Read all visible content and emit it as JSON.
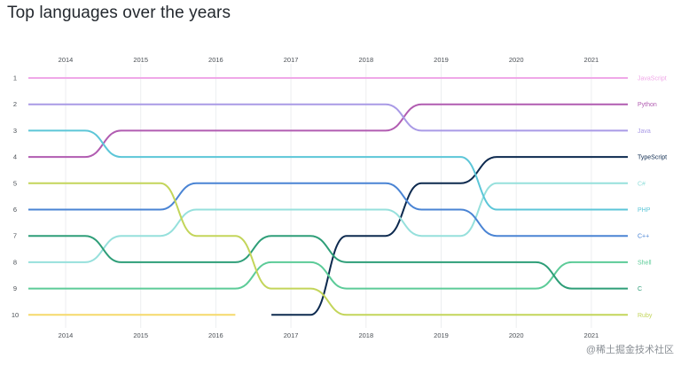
{
  "watermark": "@稀土掘金技术社区",
  "chart_data": {
    "type": "line",
    "subtype": "bump",
    "title": "Top languages over the years",
    "x": [
      2014,
      2015,
      2016,
      2017,
      2018,
      2019,
      2020,
      2021
    ],
    "x_tick_labels": [
      "2014",
      "2015",
      "2016",
      "2017",
      "2018",
      "2019",
      "2020",
      "2021"
    ],
    "y_tick_labels": [
      "1",
      "2",
      "3",
      "4",
      "5",
      "6",
      "7",
      "8",
      "9",
      "10"
    ],
    "y_axis": {
      "reversed": true,
      "range": [
        1,
        10
      ]
    },
    "grid": {
      "vertical": true,
      "horizontal": false
    },
    "legend": "right (labels at line ends)",
    "series": [
      {
        "name": "JavaScript",
        "color": "#f0a8e8",
        "ranks": [
          1,
          1,
          1,
          1,
          1,
          1,
          1,
          1
        ]
      },
      {
        "name": "Python",
        "color": "#b15cb1",
        "ranks": [
          4,
          3,
          3,
          3,
          3,
          2,
          2,
          2
        ]
      },
      {
        "name": "Java",
        "color": "#a99ae6",
        "ranks": [
          2,
          2,
          2,
          2,
          2,
          3,
          3,
          3
        ]
      },
      {
        "name": "TypeScript",
        "color": "#0d2a4f",
        "ranks": [
          null,
          null,
          null,
          10,
          7,
          5,
          4,
          4
        ]
      },
      {
        "name": "C#",
        "color": "#96e0dc",
        "ranks": [
          8,
          7,
          6,
          6,
          6,
          7,
          5,
          5
        ]
      },
      {
        "name": "PHP",
        "color": "#5cc6d8",
        "ranks": [
          3,
          4,
          4,
          4,
          4,
          4,
          6,
          6
        ]
      },
      {
        "name": "C++",
        "color": "#4a84d4",
        "ranks": [
          6,
          6,
          5,
          5,
          5,
          6,
          7,
          7
        ]
      },
      {
        "name": "Shell",
        "color": "#5ccb98",
        "ranks": [
          9,
          9,
          9,
          8,
          9,
          9,
          9,
          8
        ]
      },
      {
        "name": "C",
        "color": "#2e9e78",
        "ranks": [
          7,
          8,
          8,
          7,
          8,
          8,
          8,
          9
        ]
      },
      {
        "name": "Ruby",
        "color": "#c3d55a",
        "ranks": [
          5,
          5,
          7,
          9,
          10,
          10,
          10,
          10
        ]
      },
      {
        "name": "",
        "color": "#f5d96b",
        "ranks": [
          10,
          10,
          10,
          null,
          null,
          null,
          null,
          null
        ]
      }
    ]
  }
}
